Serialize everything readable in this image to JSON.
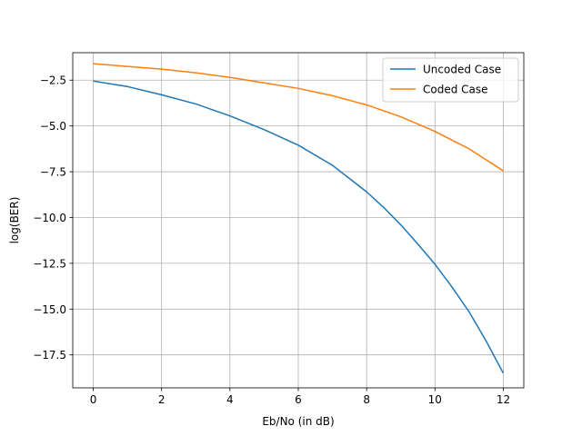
{
  "chart_data": {
    "type": "line",
    "title": "",
    "xlabel": "Eb/No (in dB)",
    "ylabel": "log(BER)",
    "xlim": [
      -0.6,
      12.6
    ],
    "ylim": [
      -19.3,
      -1.0
    ],
    "xticks": [
      0,
      2,
      4,
      6,
      8,
      10,
      12
    ],
    "xtick_labels": [
      "0",
      "2",
      "4",
      "6",
      "8",
      "10",
      "12"
    ],
    "yticks": [
      -2.5,
      -5.0,
      -7.5,
      -10.0,
      -12.5,
      -15.0,
      -17.5
    ],
    "ytick_labels": [
      "−2.5",
      "−5.0",
      "−7.5",
      "−10.0",
      "−12.5",
      "−15.0",
      "−17.5"
    ],
    "grid": true,
    "legend_position": "top-right",
    "series": [
      {
        "name": "Uncoded Case",
        "color": "#1f77b4",
        "x": [
          0,
          1,
          2,
          3,
          4,
          5,
          6,
          7,
          8,
          8.5,
          9,
          9.5,
          10,
          10.5,
          11,
          11.5,
          12
        ],
        "y": [
          -2.55,
          -2.85,
          -3.3,
          -3.8,
          -4.45,
          -5.2,
          -6.05,
          -7.15,
          -8.6,
          -9.45,
          -10.4,
          -11.45,
          -12.55,
          -13.8,
          -15.15,
          -16.75,
          -18.5
        ]
      },
      {
        "name": "Coded Case",
        "color": "#ff7f0e",
        "x": [
          0,
          1,
          2,
          3,
          4,
          5,
          6,
          7,
          8,
          9,
          10,
          11,
          12
        ],
        "y": [
          -1.6,
          -1.75,
          -1.9,
          -2.1,
          -2.35,
          -2.65,
          -2.95,
          -3.35,
          -3.85,
          -4.5,
          -5.3,
          -6.25,
          -7.45
        ]
      }
    ]
  }
}
